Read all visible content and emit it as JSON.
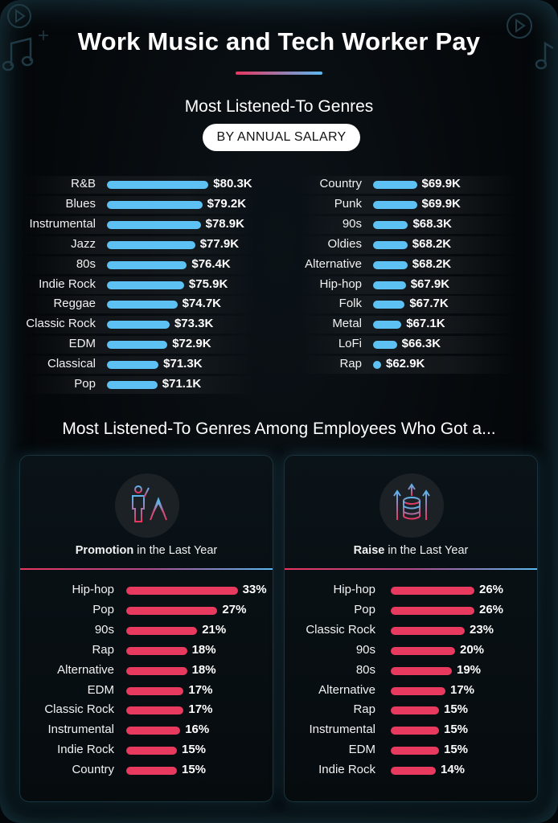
{
  "title": "Work Music and Tech Worker Pay",
  "section1": {
    "title": "Most Listened-To Genres",
    "pill": "BY ANNUAL SALARY"
  },
  "section2": {
    "title": "Most Listened-To Genres Among Employees Who Got a..."
  },
  "colors": {
    "salary_bar": "#5dc2f3",
    "percent_bar": "#e8395f",
    "accent_pink": "#e8355f",
    "accent_blue": "#5ab8f0"
  },
  "cards": [
    {
      "icon": "promotion-icon",
      "caption_bold": "Promotion",
      "caption_rest": " in the Last Year"
    },
    {
      "icon": "raise-icon",
      "caption_bold": "Raise",
      "caption_rest": " in the Last Year"
    }
  ],
  "chart_data": [
    {
      "type": "bar",
      "title": "Most Listened-To Genres",
      "subtitle": "BY ANNUAL SALARY",
      "columns": [
        {
          "categories": [
            "R&B",
            "Blues",
            "Instrumental",
            "Jazz",
            "80s",
            "Indie Rock",
            "Reggae",
            "Classic Rock",
            "EDM",
            "Classical",
            "Pop"
          ],
          "values": [
            80.3,
            79.2,
            78.9,
            77.9,
            76.4,
            75.9,
            74.7,
            73.3,
            72.9,
            71.3,
            71.1
          ],
          "labels": [
            "$80.3K",
            "$79.2K",
            "$78.9K",
            "$77.9K",
            "$76.4K",
            "$75.9K",
            "$74.7K",
            "$73.3K",
            "$72.9K",
            "$71.3K",
            "$71.1K"
          ]
        },
        {
          "categories": [
            "Country",
            "Punk",
            "90s",
            "Oldies",
            "Alternative",
            "Hip-hop",
            "Folk",
            "Metal",
            "LoFi",
            "Rap"
          ],
          "values": [
            69.9,
            69.9,
            68.3,
            68.2,
            68.2,
            67.9,
            67.7,
            67.1,
            66.3,
            62.9
          ],
          "labels": [
            "$69.9K",
            "$69.9K",
            "$68.3K",
            "$68.2K",
            "$68.2K",
            "$67.9K",
            "$67.7K",
            "$67.1K",
            "$66.3K",
            "$62.9K"
          ]
        }
      ]
    },
    {
      "type": "bar",
      "title": "Promotion in the Last Year",
      "categories": [
        "Hip-hop",
        "Pop",
        "90s",
        "Rap",
        "Alternative",
        "EDM",
        "Classic Rock",
        "Instrumental",
        "Indie Rock",
        "Country"
      ],
      "values": [
        33,
        27,
        21,
        18,
        18,
        17,
        17,
        16,
        15,
        15
      ],
      "labels": [
        "33%",
        "27%",
        "21%",
        "18%",
        "18%",
        "17%",
        "17%",
        "16%",
        "15%",
        "15%"
      ]
    },
    {
      "type": "bar",
      "title": "Raise in the Last Year",
      "categories": [
        "Hip-hop",
        "Pop",
        "Classic Rock",
        "90s",
        "80s",
        "Alternative",
        "Rap",
        "Instrumental",
        "EDM",
        "Indie Rock"
      ],
      "values": [
        26,
        26,
        23,
        20,
        19,
        17,
        15,
        15,
        15,
        14
      ],
      "labels": [
        "26%",
        "26%",
        "23%",
        "20%",
        "19%",
        "17%",
        "15%",
        "15%",
        "15%",
        "14%"
      ]
    }
  ]
}
